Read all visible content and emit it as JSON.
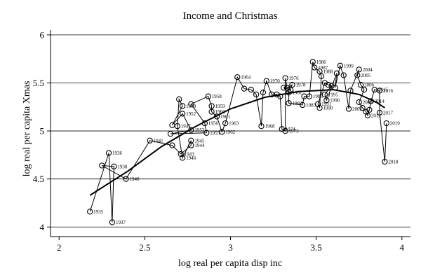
{
  "chart_data": {
    "type": "scatter",
    "title": "Income and Christmas",
    "xlabel": "log real per capita disp inc",
    "ylabel": "log real per capita Xmas",
    "xlim": [
      1.95,
      4.05
    ],
    "ylim": [
      3.9,
      6.05
    ],
    "xticks": [
      "2",
      "2.5",
      "3",
      "3.5",
      "4"
    ],
    "yticks": [
      "4",
      "4.5",
      "5",
      "5.5",
      "6"
    ],
    "grid": "horizontal",
    "points": [
      {
        "label": "1935",
        "x": 2.18,
        "y": 4.16
      },
      {
        "label": "1936",
        "x": 2.29,
        "y": 4.77
      },
      {
        "label": "1937",
        "x": 2.31,
        "y": 4.05
      },
      {
        "label": "1938",
        "x": 2.32,
        "y": 4.63
      },
      {
        "label": "",
        "x": 2.25,
        "y": 4.64
      },
      {
        "label": "1940",
        "x": 2.39,
        "y": 4.5
      },
      {
        "label": "1941",
        "x": 2.53,
        "y": 4.9
      },
      {
        "label": "",
        "x": 2.66,
        "y": 4.85
      },
      {
        "label": "1943",
        "x": 2.71,
        "y": 4.76
      },
      {
        "label": "1944",
        "x": 2.77,
        "y": 4.85
      },
      {
        "label": "1945",
        "x": 2.77,
        "y": 4.9
      },
      {
        "label": "1946",
        "x": 2.72,
        "y": 4.72
      },
      {
        "label": "1947",
        "x": 2.69,
        "y": 5.05
      },
      {
        "label": "",
        "x": 2.7,
        "y": 5.33
      },
      {
        "label": "1950",
        "x": 2.72,
        "y": 5.26
      },
      {
        "label": "",
        "x": 2.66,
        "y": 5.06
      },
      {
        "label": "1952",
        "x": 2.72,
        "y": 5.18
      },
      {
        "label": "1953",
        "x": 2.77,
        "y": 5.01
      },
      {
        "label": "",
        "x": 2.65,
        "y": 4.97
      },
      {
        "label": "1955",
        "x": 2.86,
        "y": 4.98
      },
      {
        "label": "1956",
        "x": 2.85,
        "y": 5.08
      },
      {
        "label": "",
        "x": 2.77,
        "y": 5.28
      },
      {
        "label": "1958",
        "x": 2.87,
        "y": 5.36
      },
      {
        "label": "1959",
        "x": 2.89,
        "y": 5.26
      },
      {
        "label": "1960",
        "x": 2.89,
        "y": 5.2
      },
      {
        "label": "1961",
        "x": 2.92,
        "y": 5.15
      },
      {
        "label": "1962",
        "x": 2.95,
        "y": 4.99
      },
      {
        "label": "1963",
        "x": 2.97,
        "y": 5.08
      },
      {
        "label": "1964",
        "x": 3.04,
        "y": 5.56
      },
      {
        "label": "",
        "x": 3.08,
        "y": 5.44
      },
      {
        "label": "",
        "x": 3.12,
        "y": 5.43
      },
      {
        "label": "",
        "x": 3.15,
        "y": 5.38
      },
      {
        "label": "1968",
        "x": 3.18,
        "y": 5.05
      },
      {
        "label": "",
        "x": 3.19,
        "y": 5.4
      },
      {
        "label": "1970",
        "x": 3.21,
        "y": 5.52
      },
      {
        "label": "",
        "x": 3.24,
        "y": 5.38
      },
      {
        "label": "",
        "x": 3.27,
        "y": 5.38
      },
      {
        "label": "",
        "x": 3.29,
        "y": 5.36
      },
      {
        "label": "1974",
        "x": 3.3,
        "y": 5.02
      },
      {
        "label": "1973",
        "x": 3.32,
        "y": 5.0
      },
      {
        "label": "1976",
        "x": 3.32,
        "y": 5.55
      },
      {
        "label": "",
        "x": 3.33,
        "y": 5.45
      },
      {
        "label": "1978",
        "x": 3.36,
        "y": 5.48
      },
      {
        "label": "",
        "x": 3.35,
        "y": 5.43
      },
      {
        "label": "",
        "x": 3.31,
        "y": 5.45
      },
      {
        "label": "1981",
        "x": 3.34,
        "y": 5.4
      },
      {
        "label": "1982",
        "x": 3.34,
        "y": 5.29
      },
      {
        "label": "1983",
        "x": 3.42,
        "y": 5.27
      },
      {
        "label": "",
        "x": 3.43,
        "y": 5.36
      },
      {
        "label": "1985",
        "x": 3.46,
        "y": 5.36
      },
      {
        "label": "1986",
        "x": 3.48,
        "y": 5.72
      },
      {
        "label": "1987",
        "x": 3.49,
        "y": 5.66
      },
      {
        "label": "1988",
        "x": 3.52,
        "y": 5.62
      },
      {
        "label": "",
        "x": 3.53,
        "y": 5.57
      },
      {
        "label": "1990",
        "x": 3.52,
        "y": 5.24
      },
      {
        "label": "1991",
        "x": 3.51,
        "y": 5.28
      },
      {
        "label": "",
        "x": 3.55,
        "y": 5.5
      },
      {
        "label": "",
        "x": 3.57,
        "y": 5.48
      },
      {
        "label": "",
        "x": 3.59,
        "y": 5.47
      },
      {
        "label": "1995",
        "x": 3.55,
        "y": 5.38
      },
      {
        "label": "1996",
        "x": 3.56,
        "y": 5.32
      },
      {
        "label": "",
        "x": 3.62,
        "y": 5.6
      },
      {
        "label": "",
        "x": 3.61,
        "y": 5.45
      },
      {
        "label": "1999",
        "x": 3.64,
        "y": 5.68
      },
      {
        "label": "",
        "x": 3.66,
        "y": 5.58
      },
      {
        "label": "2002",
        "x": 3.69,
        "y": 5.23
      },
      {
        "label": "",
        "x": 3.7,
        "y": 5.42
      },
      {
        "label": "2004",
        "x": 3.75,
        "y": 5.64
      },
      {
        "label": "2005",
        "x": 3.74,
        "y": 5.58
      },
      {
        "label": "2006",
        "x": 3.76,
        "y": 5.48
      },
      {
        "label": "",
        "x": 3.78,
        "y": 5.43
      },
      {
        "label": "2009",
        "x": 3.75,
        "y": 5.3
      },
      {
        "label": "",
        "x": 3.77,
        "y": 5.24
      },
      {
        "label": "",
        "x": 3.79,
        "y": 5.2
      },
      {
        "label": "2012",
        "x": 3.8,
        "y": 5.16
      },
      {
        "label": "",
        "x": 3.81,
        "y": 5.22
      },
      {
        "label": "2014",
        "x": 3.82,
        "y": 5.31
      },
      {
        "label": "2015",
        "x": 3.84,
        "y": 5.43
      },
      {
        "label": "2016",
        "x": 3.87,
        "y": 5.42
      },
      {
        "label": "2017",
        "x": 3.87,
        "y": 5.19
      },
      {
        "label": "2018",
        "x": 3.9,
        "y": 4.68
      },
      {
        "label": "2019",
        "x": 3.91,
        "y": 5.08
      }
    ],
    "fit_line": {
      "x": [
        2.18,
        2.4,
        2.6,
        2.8,
        3.0,
        3.2,
        3.4,
        3.6,
        3.75,
        3.85,
        3.9
      ],
      "y": [
        4.33,
        4.58,
        4.84,
        5.05,
        5.23,
        5.35,
        5.41,
        5.43,
        5.38,
        5.3,
        5.24
      ]
    }
  }
}
